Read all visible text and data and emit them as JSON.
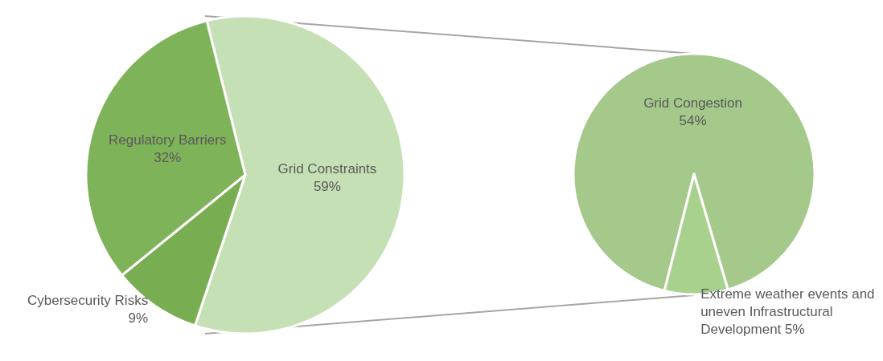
{
  "chart_data": [
    {
      "type": "pie",
      "categories": [
        "Grid Constraints",
        "Cybersecurity Risks",
        "Regulatory Barriers"
      ],
      "values": [
        59,
        9,
        32
      ],
      "value_labels": [
        "59%",
        "9%",
        "32%"
      ],
      "colors": [
        "#c5e0b4",
        "#78ad52",
        "#7fb35a"
      ]
    },
    {
      "type": "pie",
      "categories": [
        "Grid Congestion",
        "Extreme weather events and uneven Infrastructural Development"
      ],
      "values": [
        54,
        5
      ],
      "value_labels": [
        "54%",
        "5%"
      ],
      "colors": [
        "#a4c98a",
        "#a9d18e"
      ]
    }
  ]
}
